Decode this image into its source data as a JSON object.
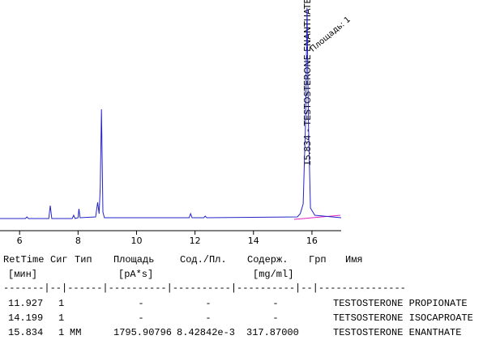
{
  "chart_data": {
    "type": "line",
    "x": [
      5.33,
      6.2,
      6.25,
      6.3,
      7.0,
      7.05,
      7.1,
      7.8,
      7.85,
      7.9,
      8.0,
      8.03,
      8.07,
      8.6,
      8.67,
      8.72,
      8.76,
      8.8,
      8.85,
      8.9,
      11.8,
      11.85,
      11.9,
      12.3,
      12.35,
      12.4,
      15.5,
      15.6,
      15.7,
      15.78,
      15.834,
      15.88,
      15.95,
      16.1,
      17.0
    ],
    "series": [
      {
        "color": "#2424c8",
        "values": [
          2,
          2,
          4,
          2,
          2,
          18,
          2,
          2,
          6,
          2,
          3,
          14,
          3,
          4,
          22,
          8,
          40,
          137,
          10,
          3,
          3,
          8,
          3,
          3,
          5,
          3,
          4,
          8,
          20,
          120,
          262,
          120,
          15,
          6,
          3
        ]
      }
    ],
    "xlim": [
      5.33,
      17.0
    ],
    "ylim": [
      0,
      272
    ],
    "xticks": [
      6,
      8,
      10,
      12,
      14,
      16
    ],
    "annotations": [
      "15.834 - TESTOSTERONE ENANTHATE",
      "Площадь: 1"
    ]
  },
  "table": {
    "header": {
      "ret_time": "RetTime",
      "sig": "Сиг",
      "type": "Тип",
      "area": "Площадь",
      "area_pct": "Сод./Пл.",
      "amount": "Содерж.",
      "grp": "Грп",
      "name": "Имя"
    },
    "units": {
      "ret_time": "[мин]",
      "area": "[pA*s]",
      "amount": "[mg/ml]"
    },
    "separator": "-------|--|------|----------|----------|----------|--|---------------",
    "rows": [
      {
        "ret_time": "11.927",
        "sig": "1",
        "area": "-",
        "area_pct": "-",
        "amount": "-",
        "name": "TESTOSTERONE PROPIONATE"
      },
      {
        "ret_time": "14.199",
        "sig": "1",
        "area": "-",
        "area_pct": "-",
        "amount": "-",
        "name": "TETSOSTERONE ISOCAPROATE"
      },
      {
        "ret_time": "15.834",
        "sig": "1",
        "type": "MM",
        "area": "1795.90796",
        "area_pct": "8.42842e-3",
        "amount": "317.87000",
        "name": "TESTOSTERONE ENANTHATE"
      }
    ]
  }
}
